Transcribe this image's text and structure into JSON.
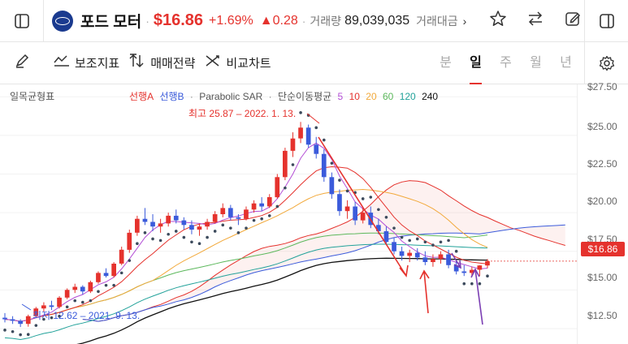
{
  "header": {
    "stock_name": "포드 모터",
    "price": "$16.86",
    "change_pct": "+1.69%",
    "change_abs": "▲0.28",
    "volume_label": "거래량",
    "volume_value": "89,039,035",
    "amount_label": "거래대금",
    "more": "›"
  },
  "toolbar": {
    "indicators_label": "보조지표",
    "strategy_label": "매매전략",
    "compare_label": "비교차트",
    "periods": [
      "분",
      "일",
      "주",
      "월",
      "년"
    ],
    "active_period": "일"
  },
  "chart": {
    "ichimoku_label": "일목균형표",
    "legend_senkou_a": "선행A",
    "legend_senkou_b": "선행B",
    "legend_sar": "Parabolic SAR",
    "legend_ma": "단순이동평균",
    "ma_periods": [
      "5",
      "10",
      "20",
      "60",
      "120",
      "240"
    ],
    "high_annotation": "최고 25.87 – 2022. 1. 13.",
    "low_annotation": "최저 12.62 – 2021. 9. 13.",
    "current_price_tag": "$16.86",
    "y_ticks": [
      "$27.50",
      "$25.00",
      "$22.50",
      "$20.00",
      "$17.50",
      "$15.00",
      "$12.50"
    ]
  },
  "colors": {
    "up": "#e5322d",
    "down": "#3b5bdb",
    "ma5": "#b44fd6",
    "ma10": "#e5322d",
    "ma20": "#f2a93b",
    "ma60": "#5cb85c",
    "ma120": "#22a29a",
    "ma240": "#111111",
    "brand": "#1a3a8f"
  },
  "chart_data": {
    "type": "candlestick",
    "ylim": [
      11.5,
      28.3
    ],
    "ohlc_series": {
      "name": "포드 모터",
      "values": [
        [
          13.2,
          13.5,
          12.9,
          13.1
        ],
        [
          13.1,
          13.3,
          12.8,
          13.0
        ],
        [
          13.0,
          13.1,
          12.6,
          12.8
        ],
        [
          12.8,
          13.4,
          12.62,
          13.3
        ],
        [
          13.3,
          13.9,
          13.2,
          13.8
        ],
        [
          13.8,
          14.2,
          13.6,
          14.0
        ],
        [
          14.0,
          14.3,
          13.7,
          13.9
        ],
        [
          13.9,
          14.6,
          13.8,
          14.5
        ],
        [
          14.5,
          15.1,
          14.4,
          15.0
        ],
        [
          15.0,
          15.4,
          14.8,
          15.2
        ],
        [
          15.2,
          15.3,
          14.7,
          14.9
        ],
        [
          14.9,
          15.6,
          14.8,
          15.5
        ],
        [
          15.5,
          16.2,
          15.4,
          16.1
        ],
        [
          16.1,
          16.4,
          15.8,
          15.9
        ],
        [
          15.9,
          16.8,
          15.8,
          16.7
        ],
        [
          16.7,
          17.8,
          16.6,
          17.6
        ],
        [
          17.6,
          18.9,
          17.4,
          18.7
        ],
        [
          18.7,
          19.8,
          18.5,
          19.6
        ],
        [
          19.6,
          20.3,
          19.2,
          19.4
        ],
        [
          19.4,
          19.9,
          18.8,
          19.1
        ],
        [
          19.1,
          19.6,
          18.7,
          19.3
        ],
        [
          19.3,
          20.0,
          19.1,
          19.8
        ],
        [
          19.8,
          20.2,
          19.3,
          19.5
        ],
        [
          19.5,
          19.7,
          18.9,
          19.2
        ],
        [
          19.2,
          19.5,
          18.6,
          18.9
        ],
        [
          18.9,
          19.3,
          18.5,
          19.1
        ],
        [
          19.1,
          19.6,
          18.9,
          19.4
        ],
        [
          19.4,
          20.1,
          19.3,
          19.9
        ],
        [
          19.9,
          20.6,
          19.7,
          20.3
        ],
        [
          20.3,
          20.5,
          19.5,
          19.7
        ],
        [
          19.7,
          19.9,
          19.2,
          19.6
        ],
        [
          19.6,
          20.4,
          19.5,
          20.2
        ],
        [
          20.2,
          20.8,
          20.0,
          20.6
        ],
        [
          20.6,
          21.0,
          20.1,
          20.4
        ],
        [
          20.4,
          21.2,
          20.3,
          21.0
        ],
        [
          21.0,
          22.5,
          20.9,
          22.3
        ],
        [
          22.3,
          24.2,
          22.1,
          24.0
        ],
        [
          24.0,
          25.2,
          23.6,
          24.8
        ],
        [
          24.8,
          25.87,
          24.5,
          25.5
        ],
        [
          25.5,
          25.7,
          24.2,
          24.4
        ],
        [
          24.4,
          24.9,
          23.5,
          23.8
        ],
        [
          23.8,
          24.1,
          22.0,
          22.3
        ],
        [
          22.3,
          22.6,
          20.9,
          21.2
        ],
        [
          21.2,
          21.5,
          19.8,
          20.1
        ],
        [
          20.1,
          20.8,
          19.6,
          20.4
        ],
        [
          20.4,
          20.7,
          19.2,
          19.5
        ],
        [
          19.5,
          20.3,
          19.3,
          20.0
        ],
        [
          20.0,
          20.4,
          19.0,
          19.2
        ],
        [
          19.2,
          19.6,
          18.6,
          18.8
        ],
        [
          18.8,
          19.1,
          17.9,
          18.1
        ],
        [
          18.1,
          18.4,
          17.3,
          17.5
        ],
        [
          17.5,
          17.8,
          16.9,
          17.2
        ],
        [
          17.2,
          17.6,
          16.8,
          17.4
        ],
        [
          17.4,
          17.7,
          16.9,
          17.1
        ],
        [
          17.1,
          17.5,
          16.6,
          16.8
        ],
        [
          16.8,
          17.3,
          16.5,
          17.0
        ],
        [
          17.0,
          17.5,
          16.7,
          17.3
        ],
        [
          17.3,
          17.6,
          16.4,
          16.6
        ],
        [
          16.6,
          16.9,
          16.0,
          16.2
        ],
        [
          16.2,
          16.6,
          15.9,
          16.1
        ],
        [
          16.1,
          16.5,
          15.9,
          16.3
        ],
        [
          16.3,
          16.6,
          15.9,
          16.58
        ],
        [
          16.58,
          17.0,
          16.4,
          16.86
        ]
      ]
    },
    "y_ticks": [
      27.5,
      25.0,
      22.5,
      20.0,
      17.5,
      15.0,
      12.5
    ]
  }
}
